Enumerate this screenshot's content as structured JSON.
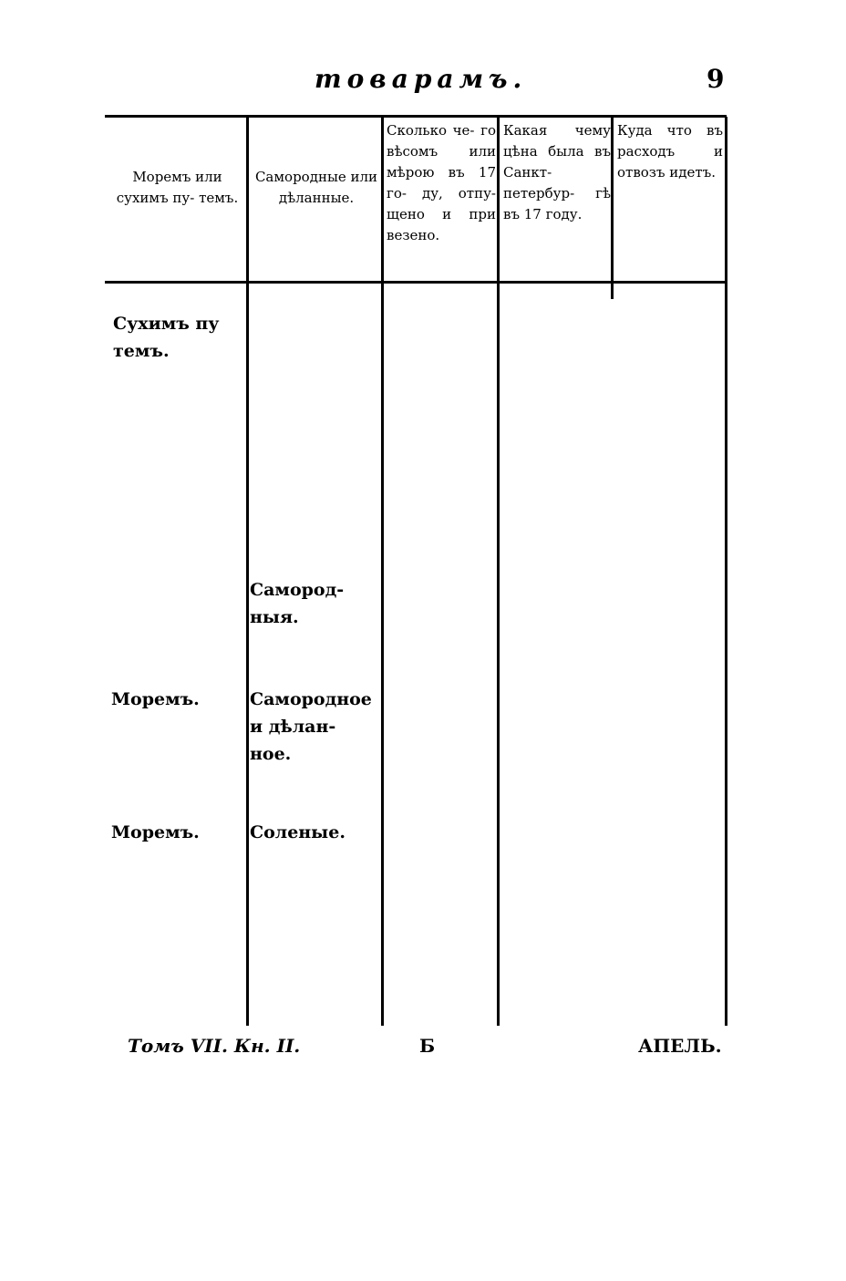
{
  "header": {
    "running_title": "товарамъ.",
    "page_number": "9"
  },
  "table": {
    "columns": [
      "Моремъ или сухимъ пу- темъ.",
      "Самородные или дѣланные.",
      "Сколько че- го вѣсомъ или мѣрою въ 17 го- ду, отпу- щено и при везено.",
      "Какая чему цѣна была въ Санкт- петербур- гѣ въ 17 году.",
      "Куда что въ расходъ и отвозъ идетъ."
    ],
    "rows": [
      {
        "way": "Сухимъ пу темъ.",
        "kind": ""
      },
      {
        "way": "",
        "kind": "Самород- ныя."
      },
      {
        "way": "Моремъ.",
        "kind": "Самородное и дѣлан- ное."
      },
      {
        "way": "Моремъ.",
        "kind": "Соленые."
      }
    ]
  },
  "footer": {
    "volume": "Томъ VII. Кн. II.",
    "signature": "Б",
    "catchword": "АПЕЛЬ."
  }
}
